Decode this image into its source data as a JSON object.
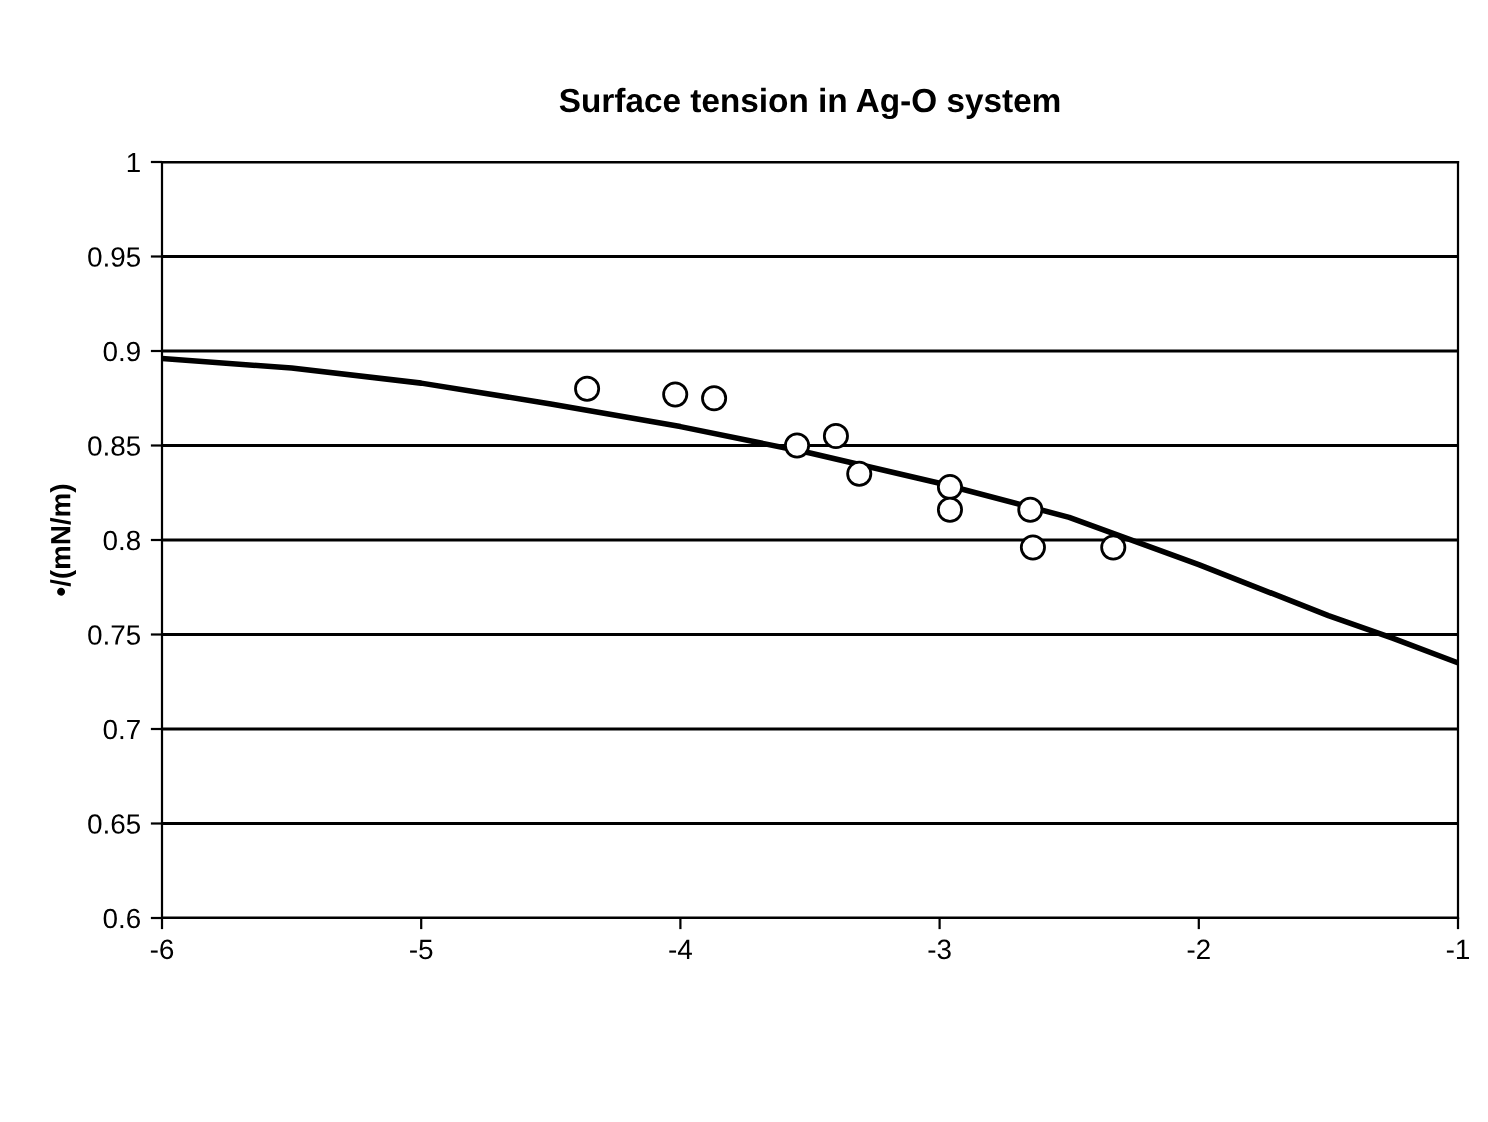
{
  "chart_data": {
    "type": "scatter",
    "title": "Surface tension in Ag-O system",
    "ylabel": "•/(mN/m)",
    "xlim": [
      -6,
      -1
    ],
    "xticks": [
      -6,
      -5,
      -4,
      -3,
      -2,
      -1
    ],
    "ylim": [
      0.6,
      1
    ],
    "yticks": [
      0.6,
      0.65,
      0.7,
      0.75,
      0.8,
      0.85,
      0.9,
      0.95,
      1
    ],
    "grid": "y",
    "legend": false,
    "series": [
      {
        "marker": "circle",
        "color": "#000000",
        "x": [
          -4.36,
          -4.02,
          -3.87,
          -3.55,
          -3.4,
          -3.31,
          -2.96,
          -2.96,
          -2.65,
          -2.64,
          -2.33
        ],
        "values": [
          0.88,
          0.877,
          0.875,
          0.85,
          0.855,
          0.835,
          0.828,
          0.816,
          0.816,
          0.796,
          0.796
        ]
      },
      {
        "type": "line",
        "color": "#000000",
        "line_style": "solid",
        "x": [
          -6,
          -5.5,
          -5,
          -4.5,
          -4,
          -3.5,
          -3,
          -2.5,
          -2,
          -1.5,
          -1.25,
          -1
        ],
        "values": [
          0.896,
          0.891,
          0.883,
          0.872,
          0.86,
          0.846,
          0.83,
          0.812,
          0.787,
          0.76,
          0.748,
          0.735
        ]
      }
    ]
  }
}
